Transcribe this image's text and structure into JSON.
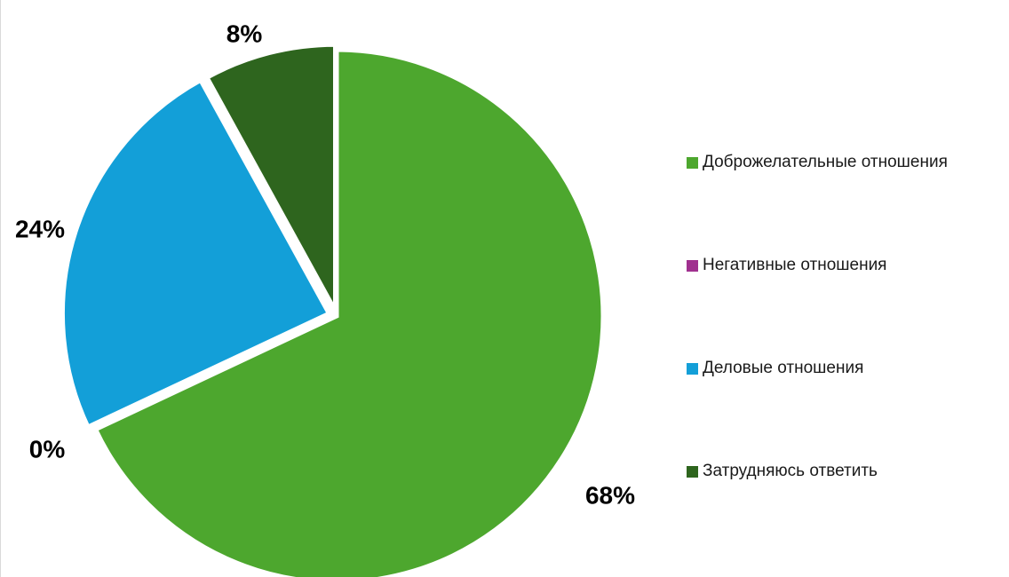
{
  "chart_data": {
    "type": "pie",
    "title": "",
    "categories": [
      "Доброжелательные отношения",
      "Негативные отношения",
      "Деловые отношения",
      "Затрудняюсь ответить"
    ],
    "values": [
      68,
      0,
      24,
      8
    ],
    "data_labels": [
      "68%",
      "0%",
      "24%",
      "8%"
    ],
    "colors": [
      "#4da72e",
      "#a0308f",
      "#139fd8",
      "#2e651e"
    ],
    "start_angle_deg": 0,
    "direction": "clockwise",
    "legend": "right"
  }
}
